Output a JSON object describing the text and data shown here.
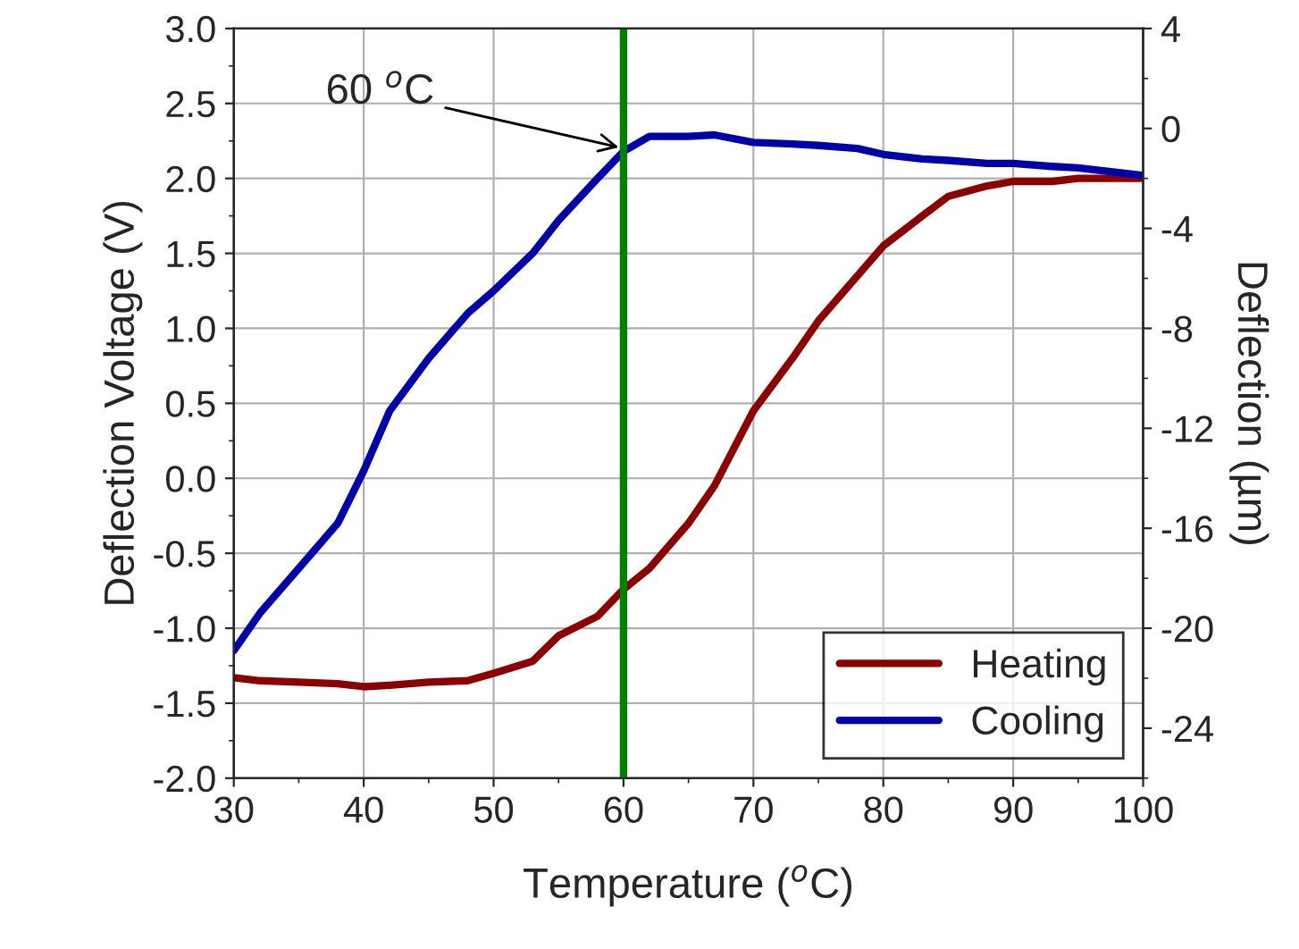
{
  "chart_data": {
    "type": "line",
    "xlabel": "Temperature ($^{o}$C)",
    "ylabel": "Deflection Voltage (V)",
    "y2label": "Deflection (µm)",
    "x": [
      30,
      32,
      35,
      38,
      40,
      42,
      45,
      48,
      50,
      53,
      55,
      58,
      60,
      62,
      65,
      67,
      70,
      73,
      75,
      78,
      80,
      83,
      85,
      88,
      90,
      93,
      95,
      100
    ],
    "series": [
      {
        "name": "Heating",
        "color": "#8b0000",
        "values": [
          -1.33,
          -1.35,
          -1.36,
          -1.37,
          -1.39,
          -1.38,
          -1.36,
          -1.35,
          -1.3,
          -1.22,
          -1.05,
          -0.92,
          -0.74,
          -0.6,
          -0.3,
          -0.05,
          0.45,
          0.8,
          1.05,
          1.35,
          1.55,
          1.75,
          1.88,
          1.95,
          1.98,
          1.98,
          2.0,
          2.0
        ]
      },
      {
        "name": "Cooling",
        "color": "#0000a8",
        "values": [
          -1.15,
          -0.9,
          -0.6,
          -0.3,
          0.05,
          0.45,
          0.8,
          1.1,
          1.25,
          1.5,
          1.72,
          2.0,
          2.18,
          2.28,
          2.28,
          2.29,
          2.24,
          2.23,
          2.22,
          2.2,
          2.16,
          2.13,
          2.12,
          2.1,
          2.1,
          2.08,
          2.07,
          2.02
        ]
      }
    ],
    "xlim": [
      30,
      100
    ],
    "xticks": [
      30,
      40,
      50,
      60,
      70,
      80,
      90,
      100
    ],
    "ylim": [
      -2.0,
      3.0
    ],
    "yticks": [
      {
        "value": -2.0,
        "label": "-2.0"
      },
      {
        "value": -1.5,
        "label": "-1.5"
      },
      {
        "value": -1.0,
        "label": "-1.0"
      },
      {
        "value": -0.5,
        "label": "-0.5"
      },
      {
        "value": 0.0,
        "label": "0.0"
      },
      {
        "value": 0.5,
        "label": "0.5"
      },
      {
        "value": 1.0,
        "label": "1.0"
      },
      {
        "value": 1.5,
        "label": "1.5"
      },
      {
        "value": 2.0,
        "label": "2.0"
      },
      {
        "value": 2.5,
        "label": "2.5"
      },
      {
        "value": 3.0,
        "label": "3.0"
      }
    ],
    "y2lim": [
      -26,
      4
    ],
    "y2ticks": [
      -24,
      -20,
      -16,
      -12,
      -8,
      -4,
      0,
      4
    ],
    "ref_lines": [
      {
        "axis": "x",
        "value": 60,
        "color": "#008000",
        "line_style": "solid"
      }
    ],
    "annotations": [
      {
        "text": "60 $^{o}$C",
        "x": 60,
        "y": 2.2
      }
    ],
    "grid": true,
    "legend": "bottom right",
    "marker": "none",
    "line_style": "solid"
  }
}
